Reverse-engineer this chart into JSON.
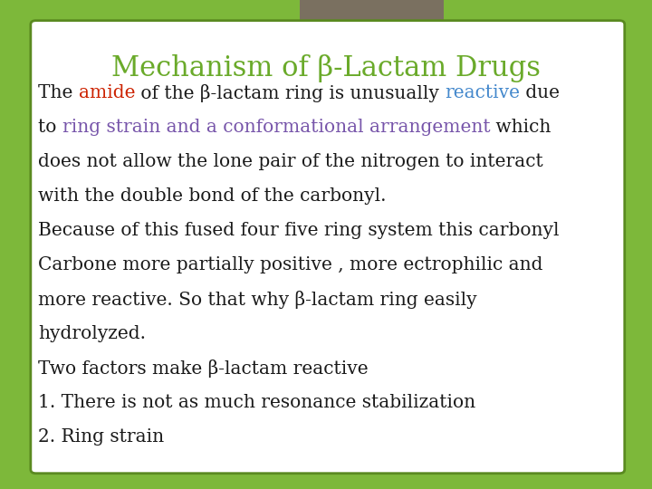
{
  "title": "Mechanism of β-Lactam Drugs",
  "title_color": "#6aaa2a",
  "title_fontsize": 22,
  "background_color": "#7db83a",
  "card_color": "#ffffff",
  "card_edge_color": "#5a8a20",
  "tab_color": "#7a7060",
  "body_color": "#1a1a1a",
  "body_fontsize": 14.5,
  "lines": [
    {
      "parts": [
        {
          "text": "The ",
          "color": "#1a1a1a"
        },
        {
          "text": "amide",
          "color": "#cc2200"
        },
        {
          "text": " of the β-lactam ring is unusually ",
          "color": "#1a1a1a"
        },
        {
          "text": "reactive",
          "color": "#4488cc"
        },
        {
          "text": " due",
          "color": "#1a1a1a"
        }
      ]
    },
    {
      "parts": [
        {
          "text": "to ",
          "color": "#1a1a1a"
        },
        {
          "text": "ring strain and a conformational arrangement",
          "color": "#7755aa"
        },
        {
          "text": " which",
          "color": "#1a1a1a"
        }
      ]
    },
    {
      "parts": [
        {
          "text": "does not allow the lone pair of the nitrogen to interact",
          "color": "#1a1a1a"
        }
      ]
    },
    {
      "parts": [
        {
          "text": "with the double bond of the carbonyl.",
          "color": "#1a1a1a"
        }
      ]
    },
    {
      "parts": [
        {
          "text": "Because of this fused four five ring system this carbonyl",
          "color": "#1a1a1a"
        }
      ]
    },
    {
      "parts": [
        {
          "text": "Carbone more partially positive , more ectrophilic and",
          "color": "#1a1a1a"
        }
      ]
    },
    {
      "parts": [
        {
          "text": "more reactive. So that why β-lactam ring easily",
          "color": "#1a1a1a"
        }
      ]
    },
    {
      "parts": [
        {
          "text": "hydrolyzed.",
          "color": "#1a1a1a"
        }
      ]
    },
    {
      "parts": [
        {
          "text": "Two factors make β-lactam reactive",
          "color": "#1a1a1a"
        }
      ]
    },
    {
      "parts": [
        {
          "text": "1. There is not as much resonance stabilization",
          "color": "#1a1a1a"
        }
      ]
    },
    {
      "parts": [
        {
          "text": "2. Ring strain",
          "color": "#1a1a1a"
        }
      ]
    }
  ]
}
